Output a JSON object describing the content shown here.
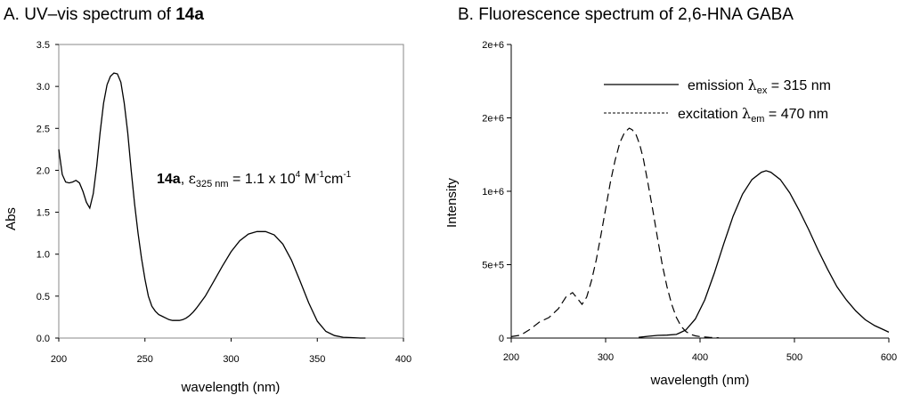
{
  "chart_data": [
    {
      "type": "line",
      "panel_title_prefix": "A. UV–vis spectrum of ",
      "panel_title_bold": "14a",
      "xlabel": "wavelength (nm)",
      "ylabel": "Abs",
      "xlim": [
        200,
        400
      ],
      "ylim": [
        0,
        3.5
      ],
      "x_ticks": [
        "200",
        "250",
        "300",
        "350",
        "400"
      ],
      "y_ticks": [
        "0.0",
        "0.5",
        "1.0",
        "1.5",
        "2.0",
        "2.5",
        "3.0",
        "3.5"
      ],
      "annotation": {
        "compound": "14a",
        "sep": ", ",
        "epsilon": "ε",
        "epsilon_sub": "325 nm",
        "value_text": " = 1.1 x 10",
        "exp": "4",
        "unit_m": " M",
        "unit_m_exp": "-1",
        "unit_cm": "cm",
        "unit_cm_exp": "-1"
      },
      "series": [
        {
          "name": "14a absorbance",
          "style": "solid",
          "x": [
            200,
            202,
            204,
            206,
            208,
            210,
            212,
            214,
            216,
            218,
            220,
            222,
            224,
            226,
            228,
            230,
            232,
            234,
            236,
            238,
            240,
            242,
            244,
            246,
            248,
            250,
            252,
            254,
            256,
            258,
            260,
            262,
            264,
            266,
            268,
            270,
            272,
            274,
            276,
            278,
            280,
            285,
            290,
            295,
            300,
            305,
            310,
            315,
            320,
            325,
            330,
            335,
            340,
            345,
            350,
            355,
            360,
            365,
            370,
            375,
            378
          ],
          "values": [
            2.25,
            1.95,
            1.86,
            1.85,
            1.86,
            1.88,
            1.85,
            1.75,
            1.62,
            1.55,
            1.72,
            2.05,
            2.45,
            2.8,
            3.02,
            3.12,
            3.16,
            3.15,
            3.05,
            2.8,
            2.45,
            2.0,
            1.6,
            1.25,
            0.95,
            0.7,
            0.5,
            0.38,
            0.32,
            0.28,
            0.26,
            0.24,
            0.22,
            0.21,
            0.21,
            0.21,
            0.22,
            0.24,
            0.27,
            0.31,
            0.36,
            0.5,
            0.68,
            0.86,
            1.03,
            1.16,
            1.24,
            1.27,
            1.27,
            1.23,
            1.12,
            0.93,
            0.68,
            0.42,
            0.2,
            0.08,
            0.03,
            0.01,
            0.005,
            0.0,
            0.0
          ]
        }
      ]
    },
    {
      "type": "line",
      "panel_title": "B. Fluorescence spectrum of 2,6-HNA GABA",
      "xlabel": "wavelength (nm)",
      "ylabel": "Intensity",
      "xlim": [
        200,
        600
      ],
      "ylim": [
        0,
        2000000
      ],
      "x_ticks": [
        "200",
        "300",
        "400",
        "500",
        "600"
      ],
      "y_tick_values": [
        0,
        500000,
        1000000,
        1500000,
        2000000
      ],
      "y_ticks": [
        "0",
        "5e+5",
        "1e+6",
        "2e+6",
        "2e+6"
      ],
      "legend_position": "top-right",
      "legend": [
        {
          "style": "solid",
          "name": "emission",
          "symbol": "λ",
          "sub": "ex",
          "value": " = 315 nm"
        },
        {
          "style": "dashed",
          "name": "excitation",
          "symbol": "λ",
          "sub": "em",
          "value": " = 470 nm"
        }
      ],
      "series": [
        {
          "name": "emission",
          "style": "solid",
          "x": [
            335,
            345,
            355,
            365,
            375,
            385,
            395,
            405,
            415,
            425,
            435,
            445,
            455,
            465,
            470,
            475,
            485,
            495,
            505,
            515,
            525,
            535,
            545,
            555,
            565,
            575,
            585,
            595,
            600
          ],
          "values": [
            5000,
            12000,
            18000,
            20000,
            25000,
            55000,
            130000,
            260000,
            440000,
            640000,
            830000,
            980000,
            1080000,
            1130000,
            1140000,
            1130000,
            1080000,
            990000,
            870000,
            740000,
            600000,
            470000,
            350000,
            260000,
            185000,
            125000,
            85000,
            55000,
            40000
          ]
        },
        {
          "name": "excitation",
          "style": "dashed",
          "x": [
            200,
            210,
            220,
            230,
            240,
            250,
            258,
            265,
            270,
            275,
            280,
            285,
            290,
            295,
            300,
            305,
            310,
            315,
            320,
            325,
            328,
            332,
            336,
            340,
            345,
            350,
            355,
            360,
            365,
            370,
            375,
            380,
            385,
            390,
            395,
            400,
            410,
            420
          ],
          "values": [
            10000,
            20000,
            60000,
            110000,
            140000,
            200000,
            280000,
            310000,
            270000,
            230000,
            280000,
            390000,
            530000,
            700000,
            880000,
            1060000,
            1210000,
            1330000,
            1400000,
            1430000,
            1420000,
            1390000,
            1320000,
            1220000,
            1050000,
            870000,
            680000,
            500000,
            350000,
            230000,
            140000,
            80000,
            45000,
            25000,
            15000,
            10000,
            5000,
            2000
          ]
        }
      ]
    }
  ]
}
